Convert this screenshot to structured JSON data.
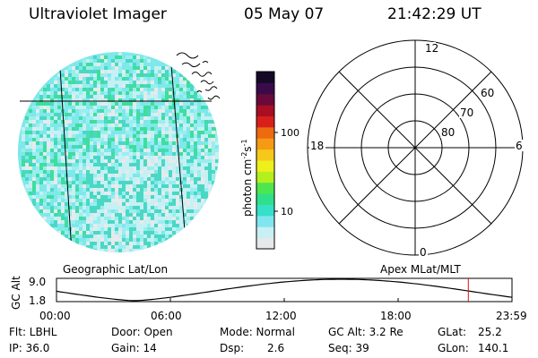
{
  "header": {
    "title": "Ultraviolet Imager",
    "date": "05 May 07",
    "time": "21:42:29 UT"
  },
  "colorbar": {
    "unit": "photon cm",
    "unit_sup1": "-2",
    "unit_mid": "s",
    "unit_sup2": "-1",
    "tick_100": "100",
    "tick_10": "10",
    "colors": [
      "#e6e8ea",
      "#c8f0f4",
      "#7fe6ef",
      "#34e0c8",
      "#2ee08a",
      "#4ee64e",
      "#b4f01e",
      "#eef01c",
      "#f5c81a",
      "#f59a14",
      "#ee6a10",
      "#d8201a",
      "#a80e24",
      "#6a0a3a",
      "#3a0a4a",
      "#140a28"
    ]
  },
  "left_panel": {
    "label": "Geographic Lat/Lon"
  },
  "right_panel": {
    "label": "Apex MLat/MLT",
    "mlt_top": "12",
    "mlt_left": "18",
    "mlt_right": "6",
    "mlt_bottom": "0",
    "lat_60": "60",
    "lat_70": "70",
    "lat_80": "80"
  },
  "altitude_strip": {
    "ylabel": "GC Alt",
    "ytick_top": "9.0",
    "ytick_bottom": "1.8",
    "xticks": [
      "00:00",
      "06:00",
      "12:00",
      "18:00",
      "23:59"
    ],
    "current_marker_hours": 21.7
  },
  "info": {
    "flt": "Flt: LBHL",
    "ip": "IP: 36.0",
    "door": "Door: Open",
    "gain": "Gain: 14",
    "mode": "Mode: Normal",
    "dsp_label": "Dsp:",
    "dsp_value": "2.6",
    "gcalt": "GC Alt: 3.2 Re",
    "seq": "Seq: 39",
    "glat_label": "GLat:",
    "glat_value": "25.2",
    "glon_label": "GLon:",
    "glon_value": "140.1"
  }
}
